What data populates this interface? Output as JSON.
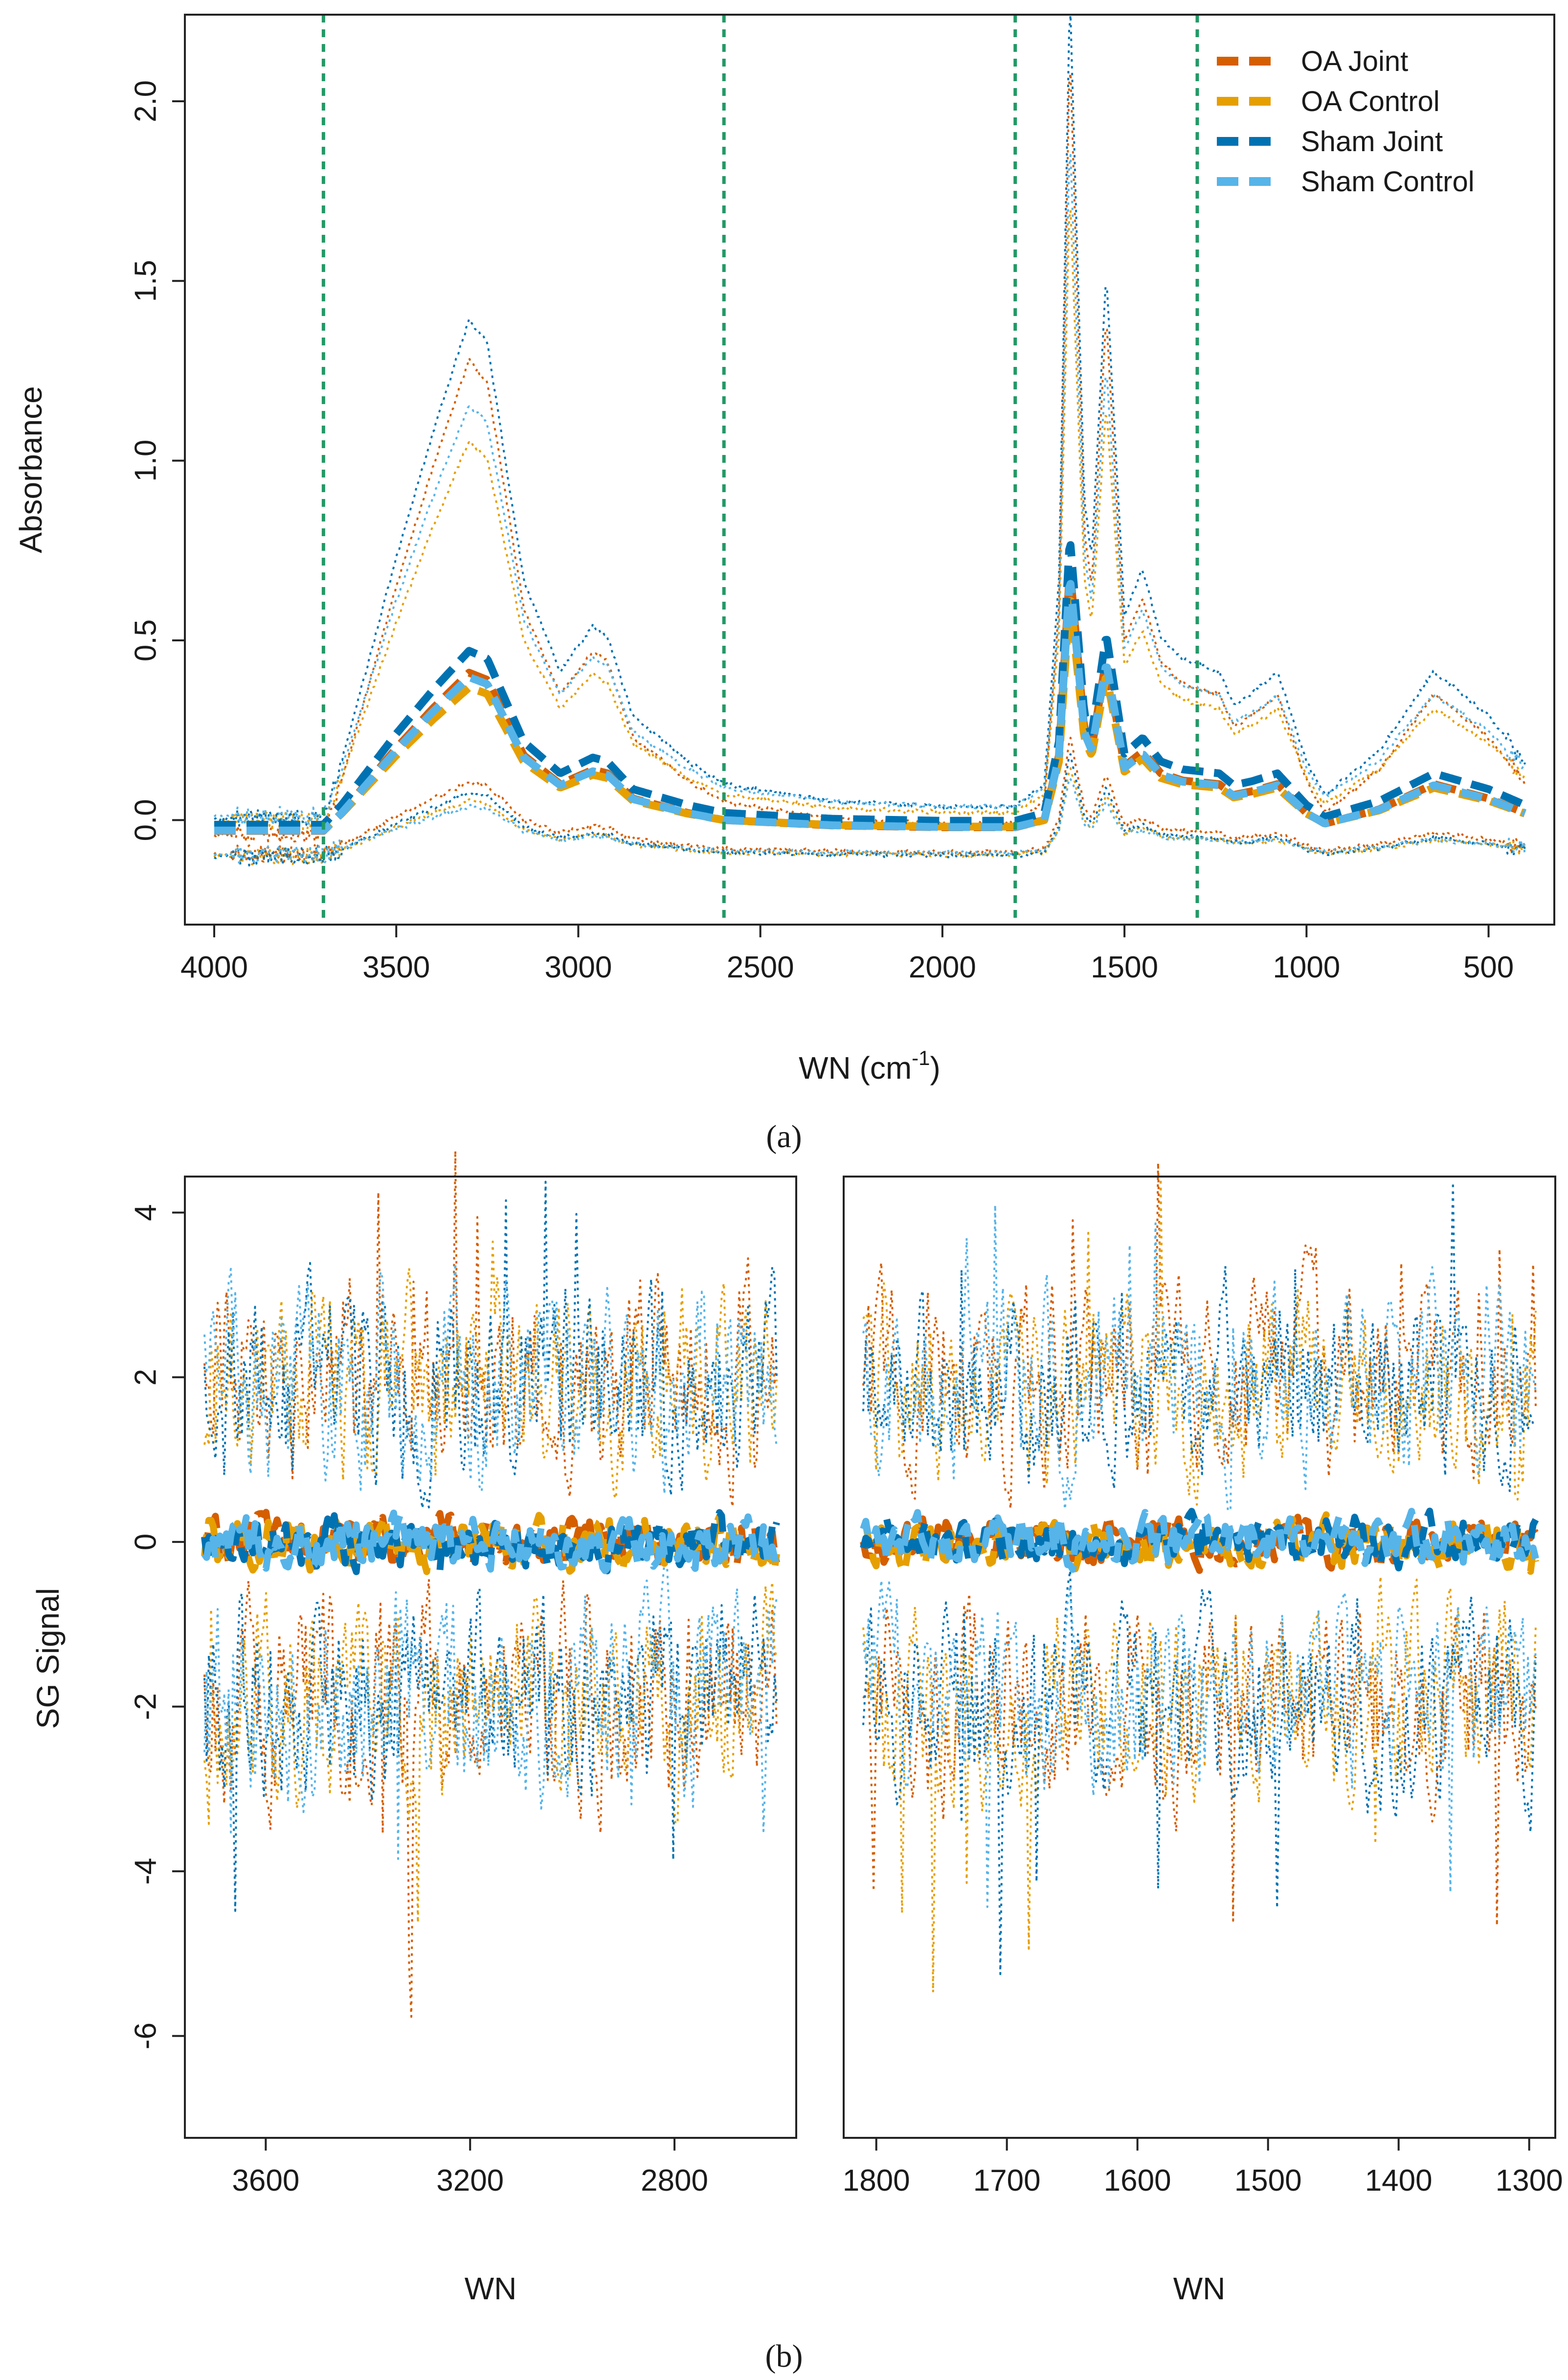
{
  "figure": {
    "panel_a_label": "(a)",
    "panel_b_label": "(b)"
  },
  "chart_data": [
    {
      "type": "line",
      "panel": "a",
      "xlabel": "WN (cm",
      "xlabel_sup": "-1",
      "xlabel_end": ")",
      "ylabel": "Absorbance",
      "xlim": [
        4000,
        400
      ],
      "ylim": [
        -0.25,
        2.2
      ],
      "xticks": [
        4000,
        3500,
        3000,
        2500,
        2000,
        1500,
        1000,
        500
      ],
      "yticks": [
        0.0,
        0.5,
        1.0,
        1.5,
        2.0
      ],
      "ytick_labels": [
        "0.0",
        "0.5",
        "1.0",
        "1.5",
        "2.0"
      ],
      "vlines": [
        3700,
        2600,
        1800,
        1300
      ],
      "vline_color": "#229966",
      "legend_position": "top-right",
      "legend": [
        {
          "name": "OA Joint",
          "color": "#D55E00"
        },
        {
          "name": "OA Control",
          "color": "#E69F00"
        },
        {
          "name": "Sham Joint",
          "color": "#0072B2"
        },
        {
          "name": "Sham Control",
          "color": "#56B4E9"
        }
      ],
      "series": [
        {
          "name": "OA Joint mean",
          "color": "#D55E00",
          "style": "dashed",
          "scale": 1.0,
          "offset": 0.0
        },
        {
          "name": "OA Control mean",
          "color": "#E69F00",
          "style": "dashed",
          "scale": 0.9,
          "offset": 0.0
        },
        {
          "name": "Sham Joint mean",
          "color": "#0072B2",
          "style": "dashed",
          "scale": 1.1,
          "offset": 0.02
        },
        {
          "name": "Sham Control mean",
          "color": "#56B4E9",
          "style": "dashed",
          "scale": 0.97,
          "offset": 0.0
        },
        {
          "name": "OA Joint +2sd",
          "color": "#D55E00",
          "style": "dotted",
          "scale": 3.0,
          "offset": 0.05
        },
        {
          "name": "OA Control +2sd",
          "color": "#E69F00",
          "style": "dotted",
          "scale": 2.4,
          "offset": 0.07
        },
        {
          "name": "Sham Joint +2sd",
          "color": "#0072B2",
          "style": "dotted",
          "scale": 3.15,
          "offset": 0.1
        },
        {
          "name": "Sham Control +2sd",
          "color": "#56B4E9",
          "style": "dotted",
          "scale": 2.6,
          "offset": 0.09
        },
        {
          "name": "OA Joint -2sd",
          "color": "#D55E00",
          "style": "dotted",
          "scale": 0.45,
          "offset": -0.08
        },
        {
          "name": "OA Control -2sd",
          "color": "#E69F00",
          "style": "dotted",
          "scale": 0.35,
          "offset": -0.09
        },
        {
          "name": "Sham Joint -2sd",
          "color": "#0072B2",
          "style": "dotted",
          "scale": 0.4,
          "offset": -0.09
        },
        {
          "name": "Sham Control -2sd",
          "color": "#56B4E9",
          "style": "dotted",
          "scale": 0.3,
          "offset": -0.085
        }
      ],
      "mean_spectrum_profile": [
        [
          4000,
          -0.03
        ],
        [
          3700,
          -0.03
        ],
        [
          3650,
          0.02
        ],
        [
          3600,
          0.08
        ],
        [
          3500,
          0.2
        ],
        [
          3400,
          0.31
        ],
        [
          3300,
          0.41
        ],
        [
          3250,
          0.39
        ],
        [
          3150,
          0.18
        ],
        [
          3050,
          0.1
        ],
        [
          2960,
          0.14
        ],
        [
          2920,
          0.13
        ],
        [
          2850,
          0.06
        ],
        [
          2700,
          0.02
        ],
        [
          2600,
          0.0
        ],
        [
          2300,
          -0.015
        ],
        [
          2000,
          -0.02
        ],
        [
          1800,
          -0.02
        ],
        [
          1720,
          0.0
        ],
        [
          1680,
          0.18
        ],
        [
          1650,
          0.7
        ],
        [
          1610,
          0.25
        ],
        [
          1590,
          0.2
        ],
        [
          1550,
          0.45
        ],
        [
          1500,
          0.15
        ],
        [
          1450,
          0.19
        ],
        [
          1400,
          0.13
        ],
        [
          1340,
          0.11
        ],
        [
          1240,
          0.1
        ],
        [
          1200,
          0.07
        ],
        [
          1150,
          0.08
        ],
        [
          1080,
          0.1
        ],
        [
          1000,
          0.02
        ],
        [
          950,
          -0.01
        ],
        [
          800,
          0.03
        ],
        [
          650,
          0.1
        ],
        [
          500,
          0.06
        ],
        [
          400,
          0.02
        ]
      ]
    },
    {
      "type": "line",
      "panel": "b-left",
      "xlabel": "WN",
      "ylabel": "SG Signal",
      "xlim": [
        3720,
        2600
      ],
      "ylim": [
        -7,
        4.2
      ],
      "xticks": [
        3600,
        3200,
        2800
      ],
      "yticks": [
        -6,
        -4,
        -2,
        0,
        2,
        4
      ],
      "bands": [
        {
          "name": "OA Joint",
          "color": "#D55E00",
          "seed": 11
        },
        {
          "name": "OA Control",
          "color": "#E69F00",
          "seed": 23
        },
        {
          "name": "Sham Joint",
          "color": "#0072B2",
          "seed": 37
        },
        {
          "name": "Sham Control",
          "color": "#56B4E9",
          "seed": 51
        }
      ],
      "upper_band_center": 1.9,
      "lower_band_center": -1.9,
      "mean_center": 0.0
    },
    {
      "type": "line",
      "panel": "b-right",
      "xlabel": "WN",
      "ylabel": "",
      "xlim": [
        1810,
        1295
      ],
      "ylim": [
        -7,
        4.2
      ],
      "xticks": [
        1800,
        1700,
        1600,
        1500,
        1400,
        1300
      ],
      "yticks": [
        -6,
        -4,
        -2,
        0,
        2,
        4
      ],
      "bands": [
        {
          "name": "OA Joint",
          "color": "#D55E00",
          "seed": 7
        },
        {
          "name": "OA Control",
          "color": "#E69F00",
          "seed": 19
        },
        {
          "name": "Sham Joint",
          "color": "#0072B2",
          "seed": 29
        },
        {
          "name": "Sham Control",
          "color": "#56B4E9",
          "seed": 43
        }
      ],
      "upper_band_center": 1.9,
      "lower_band_center": -1.9,
      "mean_center": 0.0
    }
  ]
}
